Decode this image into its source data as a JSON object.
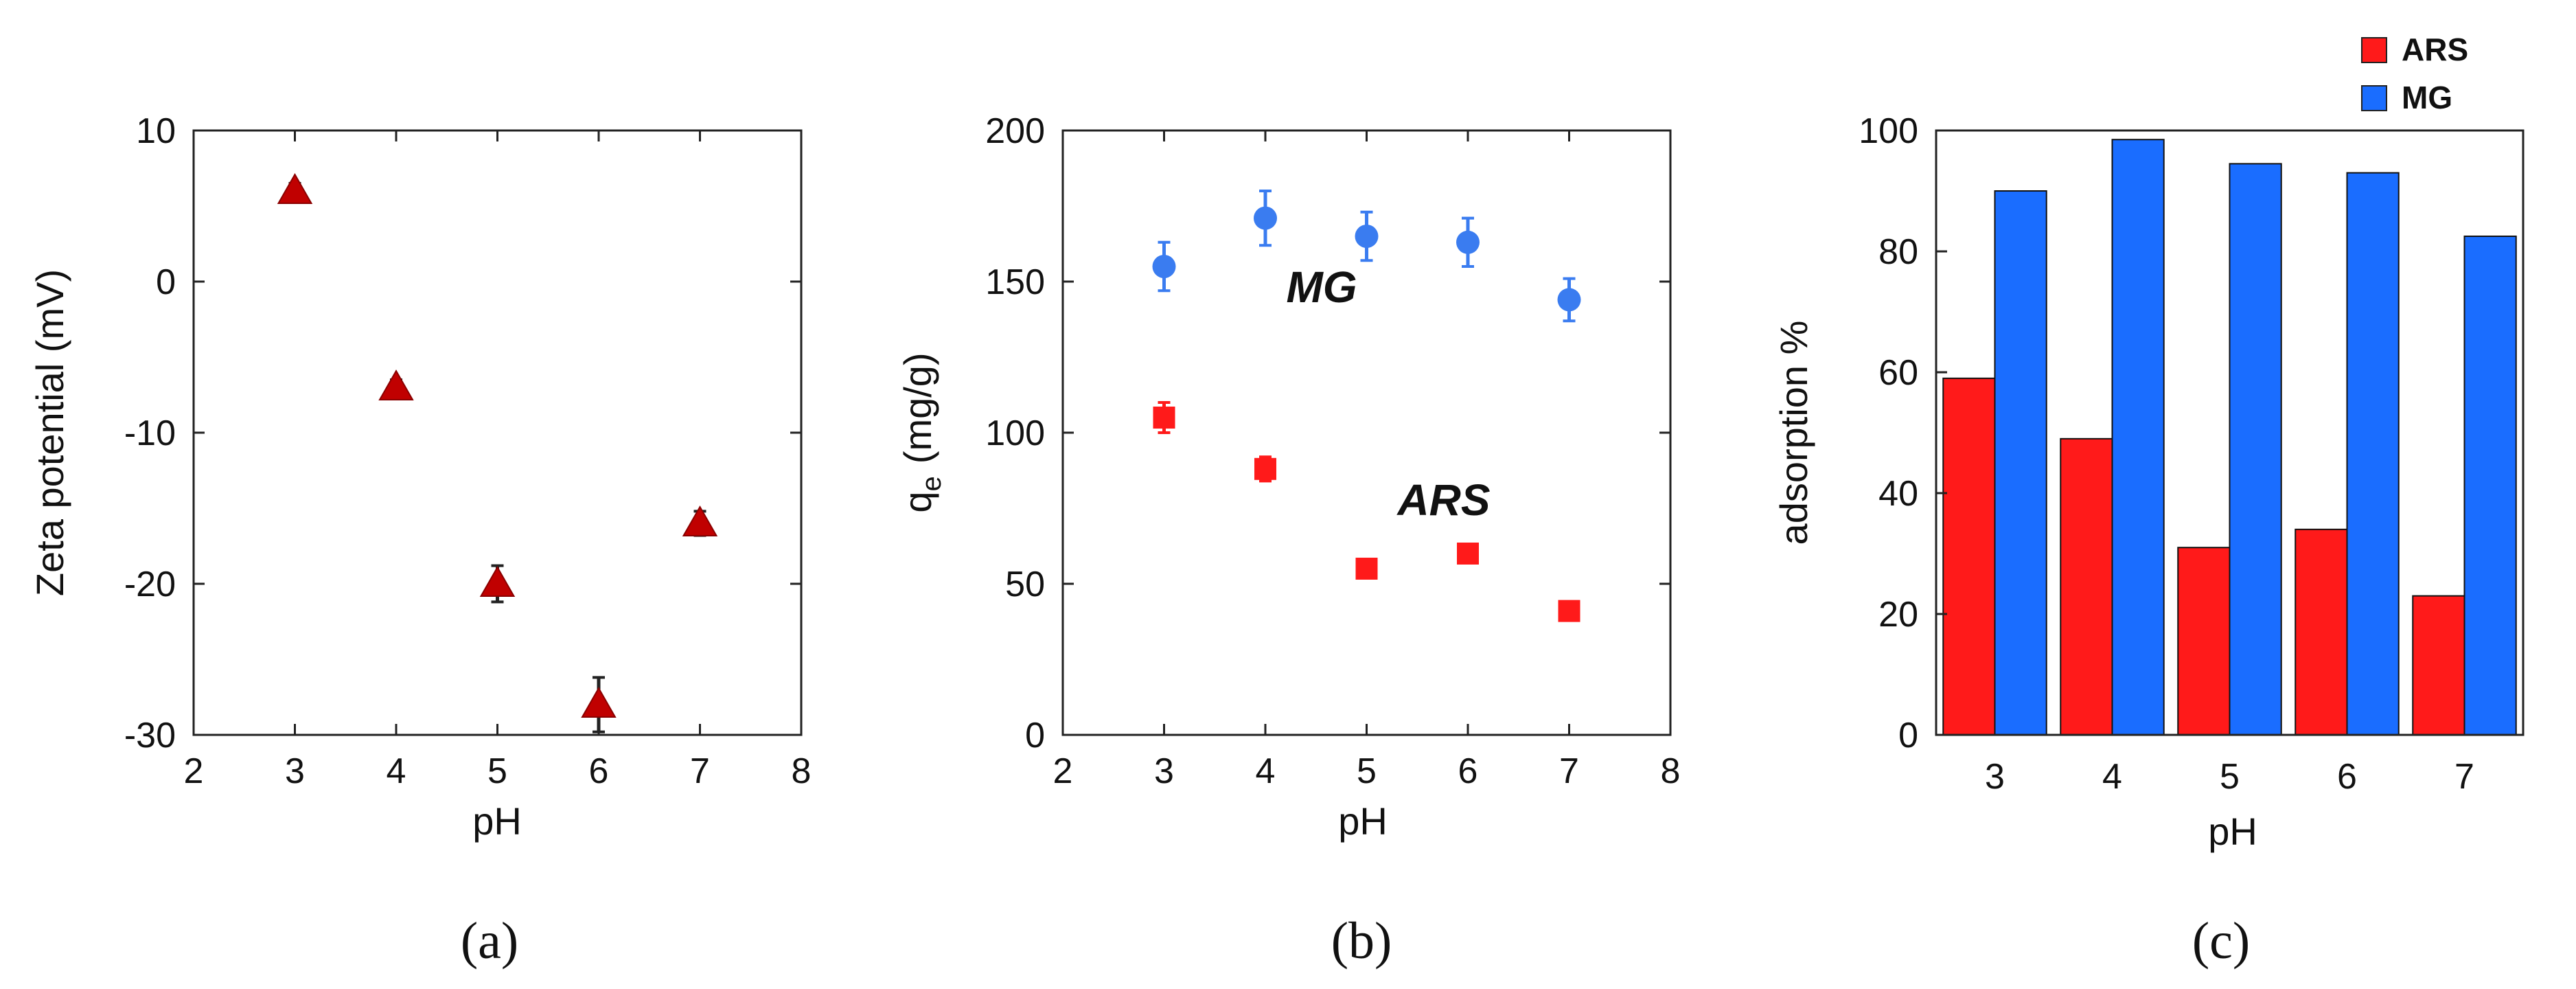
{
  "colors": {
    "ars": "#ff1a1a",
    "mg": "#1a6dff",
    "zeta": "#c00000",
    "mg_marker": "#3a7cf0"
  },
  "chart_data": [
    {
      "type": "scatter",
      "panel": "(a)",
      "xlabel": "pH",
      "ylabel": "Zeta potential (mV)",
      "xlim": [
        2,
        8
      ],
      "ylim": [
        -30,
        10
      ],
      "xticks": [
        "2",
        "3",
        "4",
        "5",
        "6",
        "7",
        "8"
      ],
      "yticks": [
        "10",
        "0",
        "-10",
        "-20",
        "-30"
      ],
      "marker": "triangle",
      "series": [
        {
          "x": [
            3,
            4,
            5,
            6,
            7
          ],
          "y": [
            6,
            -7,
            -20,
            -28,
            -16
          ],
          "err": [
            0.5,
            0.5,
            1.2,
            1.8,
            0.8
          ]
        }
      ]
    },
    {
      "type": "scatter",
      "panel": "(b)",
      "xlabel": "pH",
      "ylabel": "q",
      "ylabel_sub": "e",
      "ylabel_unit": "(mg/g)",
      "xlim": [
        2,
        8
      ],
      "ylim": [
        0,
        200
      ],
      "xticks": [
        "2",
        "3",
        "4",
        "5",
        "6",
        "7",
        "8"
      ],
      "yticks": [
        "200",
        "150",
        "100",
        "50",
        "0"
      ],
      "series": [
        {
          "name": "MG",
          "marker": "circle",
          "x": [
            3,
            4,
            5,
            6,
            7
          ],
          "y": [
            155,
            171,
            165,
            163,
            144
          ],
          "err": [
            8,
            9,
            8,
            8,
            7
          ]
        },
        {
          "name": "ARS",
          "marker": "square",
          "x": [
            3,
            4,
            5,
            6,
            7
          ],
          "y": [
            105,
            88,
            55,
            60,
            41
          ],
          "err": [
            5,
            4,
            2,
            3,
            2
          ]
        }
      ],
      "annotations": [
        "MG",
        "ARS"
      ]
    },
    {
      "type": "bar",
      "panel": "(c)",
      "xlabel": "pH",
      "ylabel": "adsorption %",
      "ylim": [
        0,
        100
      ],
      "yticks": [
        "100",
        "80",
        "60",
        "40",
        "20",
        "0"
      ],
      "categories": [
        "3",
        "4",
        "5",
        "6",
        "7"
      ],
      "series": [
        {
          "name": "ARS",
          "values": [
            59,
            49,
            31,
            34,
            23
          ]
        },
        {
          "name": "MG",
          "values": [
            90,
            98.5,
            94.5,
            93,
            82.5
          ]
        }
      ],
      "legend": "top-right"
    }
  ]
}
